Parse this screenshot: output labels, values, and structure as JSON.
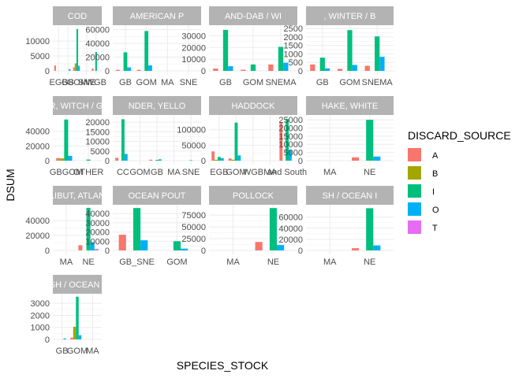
{
  "chart_data": {
    "type": "bar",
    "xlabel": "SPECIES_STOCK",
    "ylabel": "DSUM",
    "legend": {
      "title": "DISCARD_SOURCE",
      "placement": "right",
      "entries": [
        {
          "name": "A",
          "color": "#F8766D"
        },
        {
          "name": "B",
          "color": "#A3A500"
        },
        {
          "name": "I",
          "color": "#00BF7D"
        },
        {
          "name": "O",
          "color": "#00B0F6"
        },
        {
          "name": "T",
          "color": "#E76BF3"
        }
      ]
    },
    "grid": true,
    "panels": [
      {
        "title": "COD",
        "yticks": [
          0,
          5000,
          10000
        ],
        "ytick_labels": [
          "0",
          "5000",
          "10000"
        ],
        "ylim": [
          0,
          14500
        ],
        "categories": [
          "EGB",
          "GB",
          "GOM",
          "SNE",
          "WGB"
        ],
        "series": [
          {
            "source": "A",
            "values": [
              1800,
              0,
              1200,
              0,
              800
            ]
          },
          {
            "source": "B",
            "values": [
              0,
              0,
              2500,
              0,
              0
            ]
          },
          {
            "source": "I",
            "values": [
              0,
              0,
              14000,
              0,
              6300
            ]
          },
          {
            "source": "O",
            "values": [
              0,
              600,
              1700,
              0,
              0
            ]
          },
          {
            "source": "T",
            "values": [
              0,
              0,
              0,
              0,
              0
            ]
          }
        ]
      },
      {
        "title": "AMERICAN P",
        "yticks": [
          0,
          20000,
          40000,
          60000
        ],
        "ytick_labels": [
          "0",
          "20000",
          "40000",
          "60000"
        ],
        "ylim": [
          0,
          63000
        ],
        "categories": [
          "GB",
          "GOM",
          "MA",
          "SNE"
        ],
        "series": [
          {
            "source": "A",
            "values": [
              1500,
              1500,
              0,
              0
            ]
          },
          {
            "source": "B",
            "values": [
              0,
              0,
              0,
              0
            ]
          },
          {
            "source": "I",
            "values": [
              27000,
              58000,
              0,
              0
            ]
          },
          {
            "source": "O",
            "values": [
              5000,
              8000,
              0,
              0
            ]
          },
          {
            "source": "T",
            "values": [
              0,
              0,
              0,
              0
            ]
          }
        ]
      },
      {
        "title": "AND-DAB / WI",
        "yticks": [
          0,
          10000,
          20000,
          30000
        ],
        "ytick_labels": [
          "0",
          "10000",
          "20000",
          "30000"
        ],
        "ylim": [
          0,
          37000
        ],
        "categories": [
          "GB",
          "GOM",
          "SNEMA"
        ],
        "series": [
          {
            "source": "A",
            "values": [
              2000,
              1000,
              5500
            ]
          },
          {
            "source": "B",
            "values": [
              0,
              0,
              0
            ]
          },
          {
            "source": "I",
            "values": [
              35000,
              5500,
              20500
            ]
          },
          {
            "source": "O",
            "values": [
              4000,
              0,
              7000
            ]
          },
          {
            "source": "T",
            "values": [
              0,
              0,
              0
            ]
          }
        ]
      },
      {
        "title": ", WINTER / B",
        "yticks": [
          0,
          500,
          1000,
          1500,
          2000,
          2500
        ],
        "ytick_labels": [
          "0",
          "500",
          "1000",
          "1500",
          "2000",
          "2500"
        ],
        "ylim": [
          0,
          2550
        ],
        "categories": [
          "GB",
          "GOM",
          "SNEMA"
        ],
        "series": [
          {
            "source": "A",
            "values": [
              380,
              120,
              300
            ]
          },
          {
            "source": "B",
            "values": [
              0,
              0,
              0
            ]
          },
          {
            "source": "I",
            "values": [
              780,
              2400,
              2030
            ]
          },
          {
            "source": "O",
            "values": [
              150,
              350,
              830
            ]
          },
          {
            "source": "T",
            "values": [
              0,
              0,
              0
            ]
          }
        ]
      },
      {
        "title": "R, WITCH / GI",
        "yticks": [
          0,
          20000,
          40000
        ],
        "ytick_labels": [
          "0",
          "20000",
          "40000"
        ],
        "ylim": [
          0,
          59000
        ],
        "categories": [
          "GBGOM",
          "OTHER"
        ],
        "series": [
          {
            "source": "A",
            "values": [
              3500,
              0
            ]
          },
          {
            "source": "B",
            "values": [
              3000,
              0
            ]
          },
          {
            "source": "I",
            "values": [
              56000,
              1500
            ]
          },
          {
            "source": "O",
            "values": [
              6500,
              0
            ]
          },
          {
            "source": "T",
            "values": [
              0,
              0
            ]
          }
        ]
      },
      {
        "title": "NDER, YELLO",
        "yticks": [
          0,
          5000,
          10000,
          15000,
          20000
        ],
        "ytick_labels": [
          "0",
          "5000",
          "10000",
          "15000",
          "20000"
        ],
        "ylim": [
          0,
          22500
        ],
        "categories": [
          "CC",
          "GOM",
          "GB",
          "MA",
          "SNE"
        ],
        "series": [
          {
            "source": "A",
            "values": [
              1500,
              0,
              500,
              0,
              0
            ]
          },
          {
            "source": "B",
            "values": [
              0,
              0,
              0,
              0,
              0
            ]
          },
          {
            "source": "I",
            "values": [
              21500,
              0,
              400,
              0,
              250
            ]
          },
          {
            "source": "O",
            "values": [
              3500,
              0,
              700,
              0,
              0
            ]
          },
          {
            "source": "T",
            "values": [
              0,
              0,
              0,
              0,
              0
            ]
          }
        ]
      },
      {
        "title": "HADDOCK",
        "yticks": [
          0,
          50000,
          100000
        ],
        "ytick_labels": [
          "0",
          "50000",
          "100000"
        ],
        "ylim": [
          0,
          140000
        ],
        "categories": [
          "EGB",
          "GOM",
          "WGB",
          "MA",
          "and South"
        ],
        "series": [
          {
            "source": "A",
            "values": [
              30000,
              7000,
              0,
              0,
              125000
            ]
          },
          {
            "source": "B",
            "values": [
              3000,
              3000,
              0,
              0,
              0
            ]
          },
          {
            "source": "I",
            "values": [
              12000,
              123000,
              0,
              0,
              134000
            ]
          },
          {
            "source": "O",
            "values": [
              8000,
              17000,
              0,
              0,
              35000
            ]
          },
          {
            "source": "T",
            "values": [
              0,
              0,
              0,
              0,
              0
            ]
          }
        ]
      },
      {
        "title": "HAKE, WHITE",
        "yticks": [
          0,
          5000,
          10000,
          15000,
          20000,
          25000
        ],
        "ytick_labels": [
          "0",
          "5000",
          "10000",
          "15000",
          "20000",
          "25000"
        ],
        "ylim": [
          0,
          26500
        ],
        "categories": [
          "MA",
          "NE"
        ],
        "series": [
          {
            "source": "A",
            "values": [
              0,
              2000
            ]
          },
          {
            "source": "B",
            "values": [
              0,
              0
            ]
          },
          {
            "source": "I",
            "values": [
              0,
              25000
            ]
          },
          {
            "source": "O",
            "values": [
              0,
              2500
            ]
          },
          {
            "source": "T",
            "values": [
              0,
              0
            ]
          }
        ]
      },
      {
        "title": "LIBUT, ATLAN",
        "yticks": [
          0,
          20000,
          40000
        ],
        "ytick_labels": [
          "0",
          "20000",
          "40000"
        ],
        "ylim": [
          0,
          58000
        ],
        "categories": [
          "MA",
          "NE"
        ],
        "series": [
          {
            "source": "A",
            "values": [
              0,
              7000
            ]
          },
          {
            "source": "B",
            "values": [
              0,
              0
            ]
          },
          {
            "source": "I",
            "values": [
              0,
              57000
            ]
          },
          {
            "source": "O",
            "values": [
              0,
              11000
            ]
          },
          {
            "source": "T",
            "values": [
              0,
              2000
            ]
          }
        ]
      },
      {
        "title": "OCEAN POUT",
        "yticks": [
          0,
          10000,
          20000,
          30000,
          40000
        ],
        "ytick_labels": [
          "0",
          "10000",
          "20000",
          "30000",
          "40000"
        ],
        "ylim": [
          0,
          47000
        ],
        "categories": [
          "GB_SNE",
          "GOM"
        ],
        "series": [
          {
            "source": "A",
            "values": [
              17000,
              0
            ]
          },
          {
            "source": "B",
            "values": [
              0,
              0
            ]
          },
          {
            "source": "I",
            "values": [
              46000,
              10000
            ]
          },
          {
            "source": "O",
            "values": [
              11000,
              2000
            ]
          },
          {
            "source": "T",
            "values": [
              0,
              0
            ]
          }
        ]
      },
      {
        "title": "POLLOCK",
        "yticks": [
          0,
          25000,
          50000,
          75000
        ],
        "ytick_labels": [
          "0",
          "25000",
          "50000",
          "75000"
        ],
        "ylim": [
          0,
          92000
        ],
        "categories": [
          "MA",
          "NE"
        ],
        "series": [
          {
            "source": "A",
            "values": [
              0,
              18000
            ]
          },
          {
            "source": "B",
            "values": [
              0,
              0
            ]
          },
          {
            "source": "I",
            "values": [
              0,
              90000
            ]
          },
          {
            "source": "O",
            "values": [
              0,
              11500
            ]
          },
          {
            "source": "T",
            "values": [
              0,
              0
            ]
          }
        ]
      },
      {
        "title": "SH / OCEAN I",
        "yticks": [
          0,
          20000,
          40000,
          60000
        ],
        "ytick_labels": [
          "0",
          "20000",
          "40000",
          "60000"
        ],
        "ylim": [
          0,
          78000
        ],
        "categories": [
          "MA",
          "NE"
        ],
        "series": [
          {
            "source": "A",
            "values": [
              0,
              4000
            ]
          },
          {
            "source": "B",
            "values": [
              0,
              0
            ]
          },
          {
            "source": "I",
            "values": [
              0,
              76000
            ]
          },
          {
            "source": "O",
            "values": [
              0,
              9000
            ]
          },
          {
            "source": "T",
            "values": [
              0,
              0
            ]
          }
        ]
      },
      {
        "title": "SH / OCEAN (",
        "yticks": [
          0,
          1000,
          2000,
          3000
        ],
        "ytick_labels": [
          "0",
          "1000",
          "2000",
          "3000"
        ],
        "ylim": [
          0,
          3600
        ],
        "categories": [
          "GB",
          "GOM",
          "MA"
        ],
        "series": [
          {
            "source": "A",
            "values": [
              0,
              150,
              0
            ]
          },
          {
            "source": "B",
            "values": [
              0,
              1050,
              0
            ]
          },
          {
            "source": "I",
            "values": [
              0,
              3550,
              0
            ]
          },
          {
            "source": "O",
            "values": [
              80,
              350,
              0
            ]
          },
          {
            "source": "T",
            "values": [
              0,
              0,
              0
            ]
          }
        ]
      }
    ]
  }
}
